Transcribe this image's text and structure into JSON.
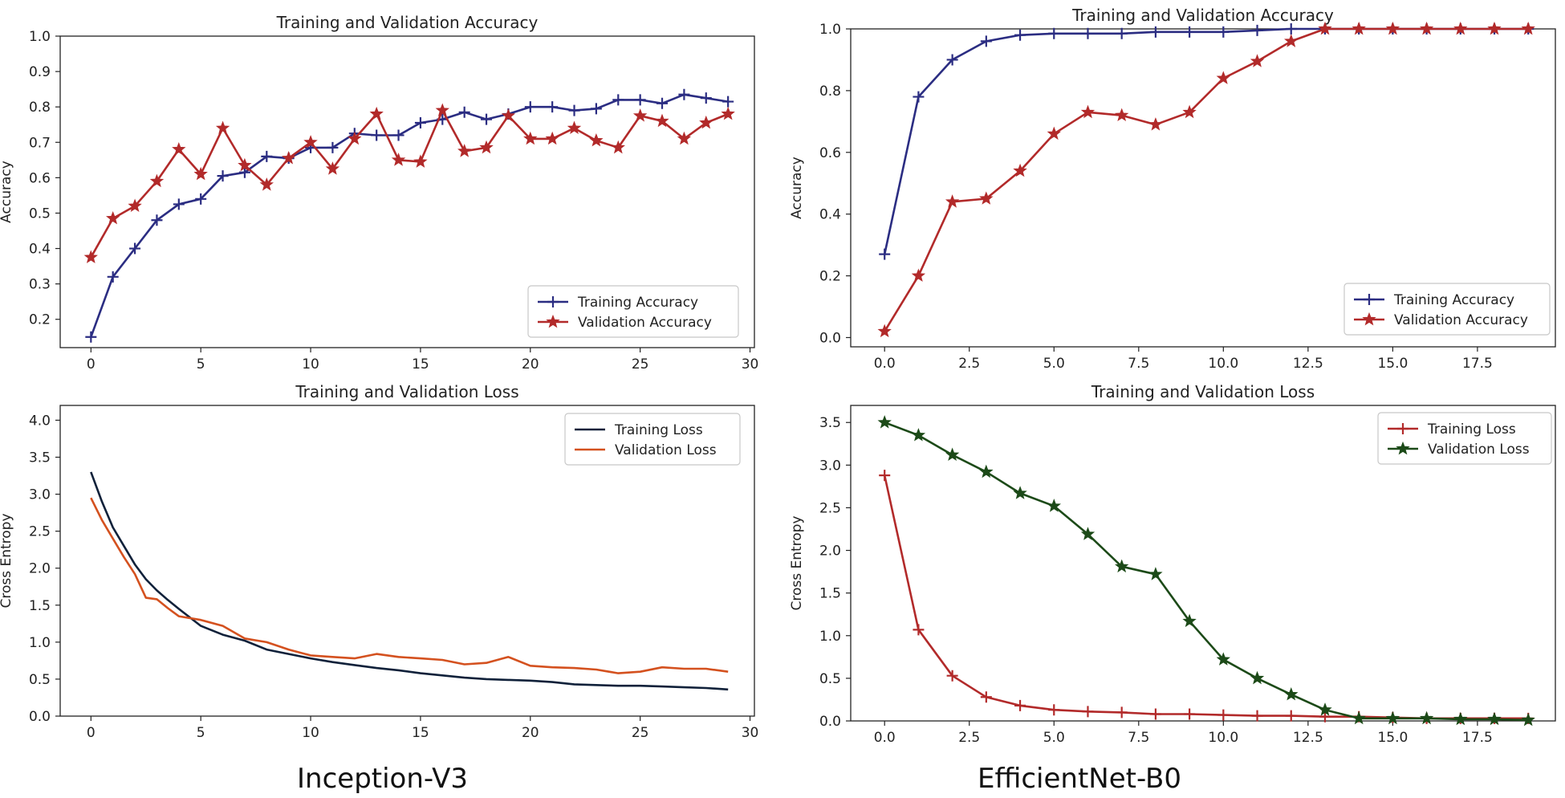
{
  "captions": {
    "left": "Inception-V3",
    "right": "EfficientNet-B0"
  },
  "colors": {
    "training_navy": "#2b2d82",
    "validation_red": "#b22a2a",
    "loss_black": "#10213a",
    "loss_orange": "#d4511f",
    "validation_green": "#1c4a18"
  },
  "chart_data": [
    {
      "type": "line",
      "title": "Training and Validation Accuracy",
      "xlabel": "",
      "ylabel": "Accuracy",
      "xlim": [
        -1.4,
        30.2
      ],
      "ylim": [
        0.12,
        1.0
      ],
      "xticks": [
        0,
        5,
        10,
        15,
        20,
        25,
        30
      ],
      "xtick_labels": [
        "0",
        "5",
        "10",
        "15",
        "20",
        "25",
        "30"
      ],
      "yticks": [
        0.2,
        0.3,
        0.4,
        0.5,
        0.6,
        0.7,
        0.8,
        0.9,
        1.0
      ],
      "ytick_labels": [
        "0.2",
        "0.3",
        "0.4",
        "0.5",
        "0.6",
        "0.7",
        "0.8",
        "0.9",
        "1.0"
      ],
      "legend_position": "bottom-right",
      "x": [
        0,
        1,
        2,
        3,
        4,
        5,
        6,
        7,
        8,
        9,
        10,
        11,
        12,
        13,
        14,
        15,
        16,
        17,
        18,
        19,
        20,
        21,
        22,
        23,
        24,
        25,
        26,
        27,
        28,
        29
      ],
      "series": [
        {
          "name": "Training Accuracy",
          "color": "#2b2d82",
          "marker": "plus",
          "values": [
            0.15,
            0.32,
            0.4,
            0.48,
            0.525,
            0.54,
            0.605,
            0.615,
            0.66,
            0.655,
            0.685,
            0.685,
            0.725,
            0.72,
            0.72,
            0.755,
            0.765,
            0.785,
            0.765,
            0.78,
            0.8,
            0.8,
            0.79,
            0.795,
            0.82,
            0.82,
            0.81,
            0.835,
            0.825,
            0.815
          ]
        },
        {
          "name": "Validation Accuracy",
          "color": "#b22a2a",
          "marker": "star",
          "values": [
            0.375,
            0.485,
            0.52,
            0.59,
            0.68,
            0.61,
            0.74,
            0.635,
            0.58,
            0.655,
            0.7,
            0.625,
            0.71,
            0.78,
            0.65,
            0.645,
            0.79,
            0.675,
            0.685,
            0.775,
            0.71,
            0.71,
            0.74,
            0.705,
            0.685,
            0.775,
            0.76,
            0.71,
            0.755,
            0.78
          ]
        }
      ]
    },
    {
      "type": "line",
      "title": "Training and Validation Accuracy",
      "xlabel": "",
      "ylabel": "Accuracy",
      "xlim": [
        -1.0,
        19.8
      ],
      "ylim": [
        -0.03,
        1.0
      ],
      "xticks": [
        0,
        2.5,
        5,
        7.5,
        10,
        12.5,
        15,
        17.5
      ],
      "xtick_labels": [
        "0.0",
        "2.5",
        "5.0",
        "7.5",
        "10.0",
        "12.5",
        "15.0",
        "17.5"
      ],
      "yticks": [
        0.0,
        0.2,
        0.4,
        0.6,
        0.8,
        1.0
      ],
      "ytick_labels": [
        "0.0",
        "0.2",
        "0.4",
        "0.6",
        "0.8",
        "1.0"
      ],
      "legend_position": "bottom-right",
      "x": [
        0,
        1,
        2,
        3,
        4,
        5,
        6,
        7,
        8,
        9,
        10,
        11,
        12,
        13,
        14,
        15,
        16,
        17,
        18,
        19
      ],
      "series": [
        {
          "name": "Training Accuracy",
          "color": "#2b2d82",
          "marker": "plus",
          "values": [
            0.27,
            0.78,
            0.9,
            0.96,
            0.98,
            0.985,
            0.985,
            0.985,
            0.99,
            0.99,
            0.99,
            0.995,
            1.0,
            1.0,
            1.0,
            1.0,
            1.0,
            1.0,
            1.0,
            1.0
          ]
        },
        {
          "name": "Validation Accuracy",
          "color": "#b22a2a",
          "marker": "star",
          "values": [
            0.02,
            0.2,
            0.44,
            0.45,
            0.54,
            0.66,
            0.73,
            0.72,
            0.69,
            0.73,
            0.84,
            0.895,
            0.96,
            1.0,
            1.0,
            1.0,
            1.0,
            1.0,
            1.0,
            1.0
          ]
        }
      ]
    },
    {
      "type": "line",
      "title": "Training and Validation Loss",
      "xlabel": "",
      "ylabel": "Cross Entropy",
      "xlim": [
        -1.4,
        30.2
      ],
      "ylim": [
        0.0,
        4.2
      ],
      "xticks": [
        0,
        5,
        10,
        15,
        20,
        25,
        30
      ],
      "xtick_labels": [
        "0",
        "5",
        "10",
        "15",
        "20",
        "25",
        "30"
      ],
      "yticks": [
        0.0,
        0.5,
        1.0,
        1.5,
        2.0,
        2.5,
        3.0,
        3.5,
        4.0
      ],
      "ytick_labels": [
        "0.0",
        "0.5",
        "1.0",
        "1.5",
        "2.0",
        "2.5",
        "3.0",
        "3.5",
        "4.0"
      ],
      "legend_position": "top-right",
      "x": [
        0,
        0.5,
        1,
        1.5,
        2,
        2.5,
        3,
        3.5,
        4,
        5,
        6,
        7,
        8,
        9,
        10,
        11,
        12,
        13,
        14,
        15,
        16,
        17,
        18,
        19,
        20,
        21,
        22,
        23,
        24,
        25,
        26,
        27,
        28,
        29
      ],
      "series": [
        {
          "name": "Training Loss",
          "color": "#10213a",
          "marker": "none",
          "values": [
            3.3,
            2.9,
            2.55,
            2.3,
            2.05,
            1.85,
            1.7,
            1.57,
            1.45,
            1.22,
            1.1,
            1.02,
            0.9,
            0.84,
            0.78,
            0.73,
            0.69,
            0.65,
            0.62,
            0.58,
            0.55,
            0.52,
            0.5,
            0.49,
            0.48,
            0.46,
            0.43,
            0.42,
            0.41,
            0.41,
            0.4,
            0.39,
            0.38,
            0.36
          ]
        },
        {
          "name": "Validation Loss",
          "color": "#d4511f",
          "marker": "none",
          "values": [
            2.95,
            2.65,
            2.4,
            2.15,
            1.92,
            1.6,
            1.58,
            1.46,
            1.35,
            1.3,
            1.22,
            1.05,
            1.0,
            0.9,
            0.82,
            0.8,
            0.78,
            0.84,
            0.8,
            0.78,
            0.76,
            0.7,
            0.72,
            0.8,
            0.68,
            0.66,
            0.65,
            0.63,
            0.58,
            0.6,
            0.66,
            0.64,
            0.64,
            0.6
          ]
        }
      ]
    },
    {
      "type": "line",
      "title": "Training and Validation Loss",
      "xlabel": "",
      "ylabel": "Cross Entropy",
      "xlim": [
        -1.0,
        19.8
      ],
      "ylim": [
        0.0,
        3.7
      ],
      "xticks": [
        0,
        2.5,
        5,
        7.5,
        10,
        12.5,
        15,
        17.5
      ],
      "xtick_labels": [
        "0.0",
        "2.5",
        "5.0",
        "7.5",
        "10.0",
        "12.5",
        "15.0",
        "17.5"
      ],
      "yticks": [
        0.0,
        0.5,
        1.0,
        1.5,
        2.0,
        2.5,
        3.0,
        3.5
      ],
      "ytick_labels": [
        "0.0",
        "0.5",
        "1.0",
        "1.5",
        "2.0",
        "2.5",
        "3.0",
        "3.5"
      ],
      "legend_position": "top-right",
      "x": [
        0,
        1,
        2,
        3,
        4,
        5,
        6,
        7,
        8,
        9,
        10,
        11,
        12,
        13,
        14,
        15,
        16,
        17,
        18,
        19
      ],
      "series": [
        {
          "name": "Training Loss",
          "color": "#b22a2a",
          "marker": "plus",
          "values": [
            2.88,
            1.07,
            0.53,
            0.28,
            0.18,
            0.13,
            0.11,
            0.1,
            0.08,
            0.08,
            0.07,
            0.06,
            0.06,
            0.05,
            0.05,
            0.04,
            0.03,
            0.03,
            0.03,
            0.03
          ]
        },
        {
          "name": "Validation Loss",
          "color": "#1c4a18",
          "marker": "star",
          "values": [
            3.5,
            3.35,
            3.12,
            2.92,
            2.67,
            2.52,
            2.19,
            1.81,
            1.72,
            1.17,
            0.72,
            0.5,
            0.31,
            0.13,
            0.03,
            0.03,
            0.03,
            0.02,
            0.02,
            0.01
          ]
        }
      ]
    }
  ]
}
